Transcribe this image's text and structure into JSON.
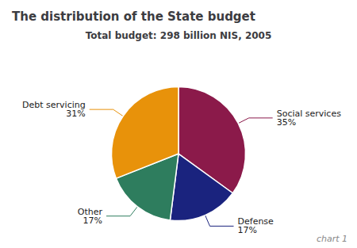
{
  "chart_data": {
    "type": "pie",
    "title": "The distribution of the State budget",
    "subtitle": "Total budget: 298 billion NIS, 2005",
    "annotations": [
      "chart 1"
    ],
    "categories": [
      "Social services",
      "Defense",
      "Other",
      "Debt servicing"
    ],
    "values": [
      35,
      17,
      17,
      31
    ],
    "value_labels": [
      "35%",
      "17%",
      "17%",
      "31%"
    ],
    "colors": [
      "#8B1A4A",
      "#1A237E",
      "#2E7D5E",
      "#E8920A"
    ],
    "data_labels": true,
    "legend": false
  }
}
